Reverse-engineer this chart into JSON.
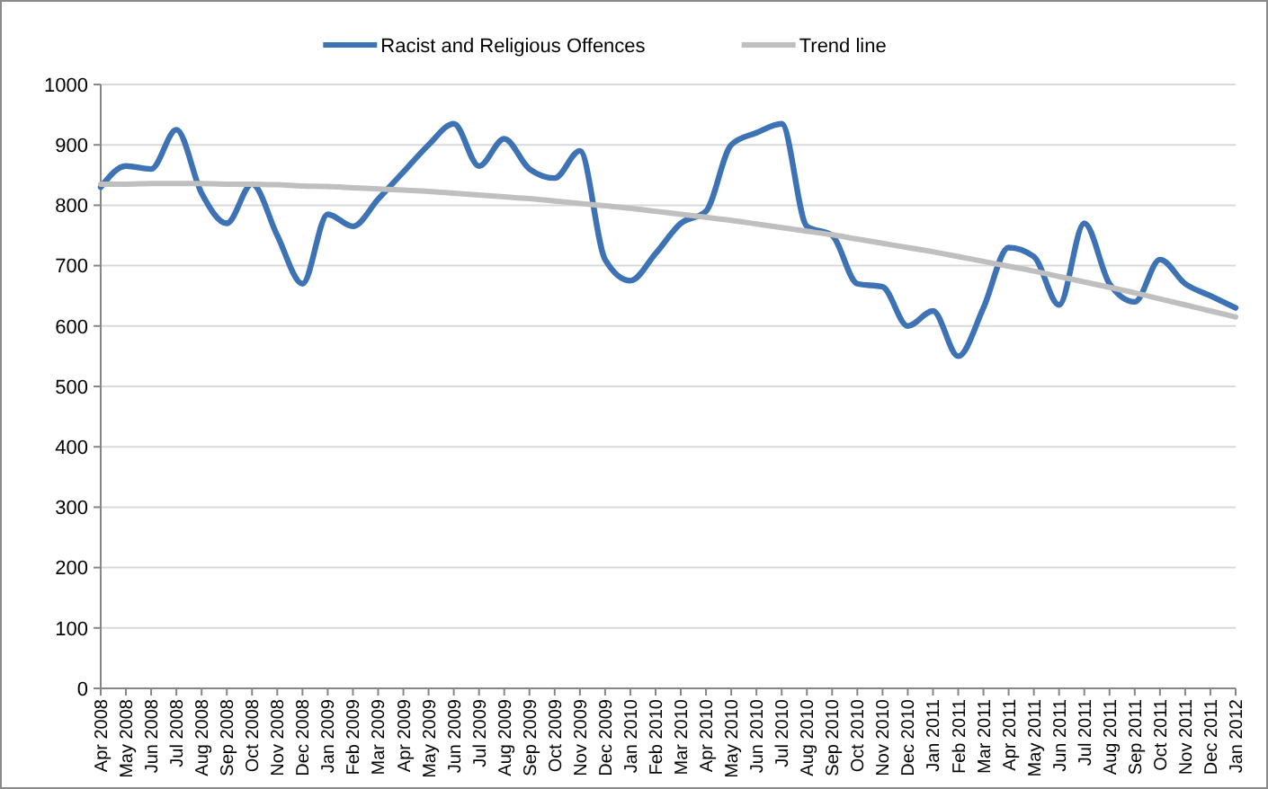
{
  "chart_data": {
    "type": "line",
    "categories": [
      "Apr 2008",
      "May 2008",
      "Jun 2008",
      "Jul 2008",
      "Aug 2008",
      "Sep 2008",
      "Oct 2008",
      "Nov 2008",
      "Dec 2008",
      "Jan 2009",
      "Feb 2009",
      "Mar 2009",
      "Apr 2009",
      "May 2009",
      "Jun 2009",
      "Jul 2009",
      "Aug 2009",
      "Sep 2009",
      "Oct 2009",
      "Nov 2009",
      "Dec 2009",
      "Jan 2010",
      "Feb 2010",
      "Mar 2010",
      "Apr 2010",
      "May 2010",
      "Jun 2010",
      "Jul 2010",
      "Aug 2010",
      "Sep 2010",
      "Oct 2010",
      "Nov 2010",
      "Dec 2010",
      "Jan 2011",
      "Feb 2011",
      "Mar 2011",
      "Apr 2011",
      "May 2011",
      "Jun 2011",
      "Jul 2011",
      "Aug 2011",
      "Sep 2011",
      "Oct 2011",
      "Nov 2011",
      "Dec 2011",
      "Jan 2012"
    ],
    "series": [
      {
        "name": "Racist and Religious Offences",
        "color": "#3d72b4",
        "values": [
          830,
          865,
          860,
          925,
          820,
          770,
          835,
          750,
          670,
          785,
          765,
          810,
          855,
          900,
          935,
          865,
          910,
          860,
          845,
          890,
          710,
          675,
          720,
          770,
          790,
          900,
          920,
          935,
          765,
          750,
          670,
          665,
          600,
          625,
          550,
          630,
          730,
          715,
          635,
          770,
          670,
          640,
          710,
          670,
          650,
          630
        ]
      },
      {
        "name": "Trend line",
        "color": "#bfbfbf",
        "values": [
          835,
          835,
          836,
          836,
          836,
          835,
          835,
          834,
          832,
          831,
          829,
          827,
          825,
          823,
          820,
          817,
          814,
          811,
          807,
          803,
          799,
          795,
          790,
          785,
          780,
          775,
          769,
          763,
          757,
          751,
          744,
          737,
          730,
          723,
          715,
          707,
          699,
          691,
          682,
          673,
          664,
          655,
          645,
          635,
          625,
          615
        ]
      }
    ],
    "ylim": [
      0,
      1000
    ],
    "yticks": [
      0,
      100,
      200,
      300,
      400,
      500,
      600,
      700,
      800,
      900,
      1000
    ],
    "grid": "y",
    "legend": "top",
    "marker": "none",
    "line_style": "solid"
  }
}
